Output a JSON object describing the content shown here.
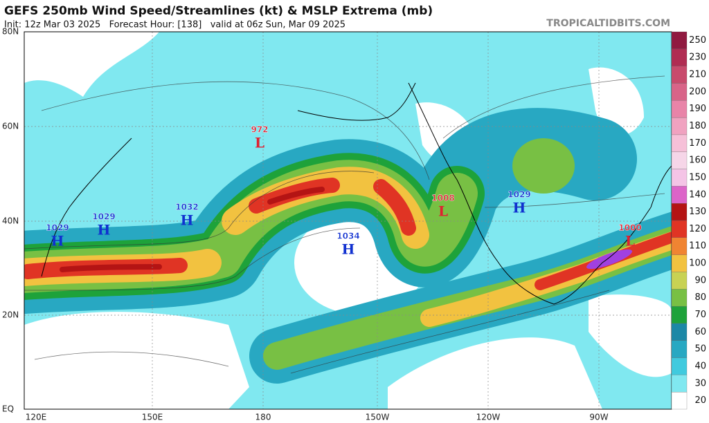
{
  "header": {
    "title": "GEFS 250mb Wind Speed/Streamlines (kt) & MSLP Extrema (mb)",
    "subtitle": "Init: 12z Mar 03 2025   Forecast Hour: [138]   valid at 06z Sun, Mar 09 2025",
    "site": "TROPICALTIDBITS.COM"
  },
  "map": {
    "lat_labels": [
      "80N",
      "60N",
      "40N",
      "20N",
      "EQ"
    ],
    "lon_labels": [
      "120E",
      "150E",
      "180",
      "150W",
      "120W",
      "90W"
    ],
    "extrema": [
      {
        "value": 1029,
        "symbol": "H"
      },
      {
        "value": 1029,
        "symbol": "H"
      },
      {
        "value": 1032,
        "symbol": "H"
      },
      {
        "value": 972,
        "symbol": "L"
      },
      {
        "value": 1034,
        "symbol": "H"
      },
      {
        "value": 1008,
        "symbol": "L"
      },
      {
        "value": 1029,
        "symbol": "H"
      },
      {
        "value": 1000,
        "symbol": "L"
      }
    ]
  },
  "colorbar": {
    "levels": [
      {
        "value": 20,
        "color": "#ffffff"
      },
      {
        "value": 30,
        "color": "#80e8f0"
      },
      {
        "value": 40,
        "color": "#40cade"
      },
      {
        "value": 50,
        "color": "#28a8c2"
      },
      {
        "value": 60,
        "color": "#1c88a6"
      },
      {
        "value": 70,
        "color": "#1ea23a"
      },
      {
        "value": 80,
        "color": "#78c044"
      },
      {
        "value": 90,
        "color": "#c8d254"
      },
      {
        "value": 100,
        "color": "#f2c240"
      },
      {
        "value": 110,
        "color": "#f08432"
      },
      {
        "value": 120,
        "color": "#e03424"
      },
      {
        "value": 130,
        "color": "#b41414"
      },
      {
        "value": 140,
        "color": "#dc64c8"
      },
      {
        "value": 150,
        "color": "#f4c4e6"
      },
      {
        "value": 160,
        "color": "#f6d6e8"
      },
      {
        "value": 170,
        "color": "#f6c0d8"
      },
      {
        "value": 180,
        "color": "#f0a2c0"
      },
      {
        "value": 190,
        "color": "#e884a8"
      },
      {
        "value": 200,
        "color": "#d86488"
      },
      {
        "value": 210,
        "color": "#c84a6c"
      },
      {
        "value": 230,
        "color": "#b02c52"
      },
      {
        "value": 250,
        "color": "#901a40"
      }
    ]
  }
}
